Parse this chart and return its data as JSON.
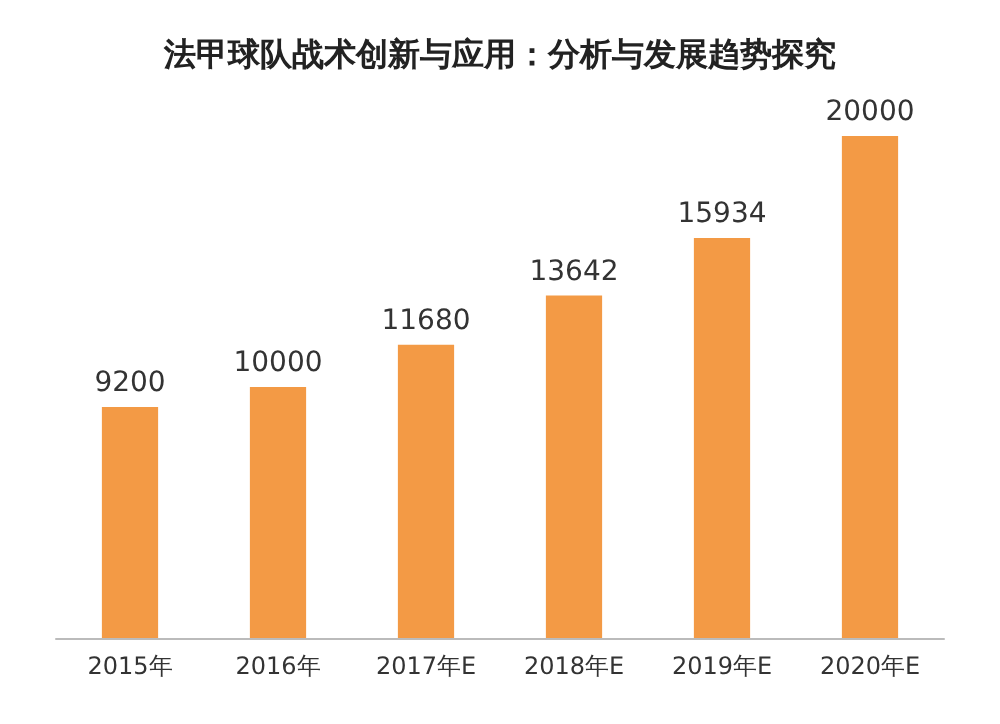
{
  "chart_data": {
    "type": "bar",
    "title": "法甲球队战术创新与应用：分析与发展趋势探究",
    "categories": [
      "2015年",
      "2016年",
      "2017年E",
      "2018年E",
      "2019年E",
      "2020年E"
    ],
    "values": [
      9200,
      10000,
      11680,
      13642,
      15934,
      20000
    ],
    "color": "#f39a45",
    "data_labels": true
  }
}
